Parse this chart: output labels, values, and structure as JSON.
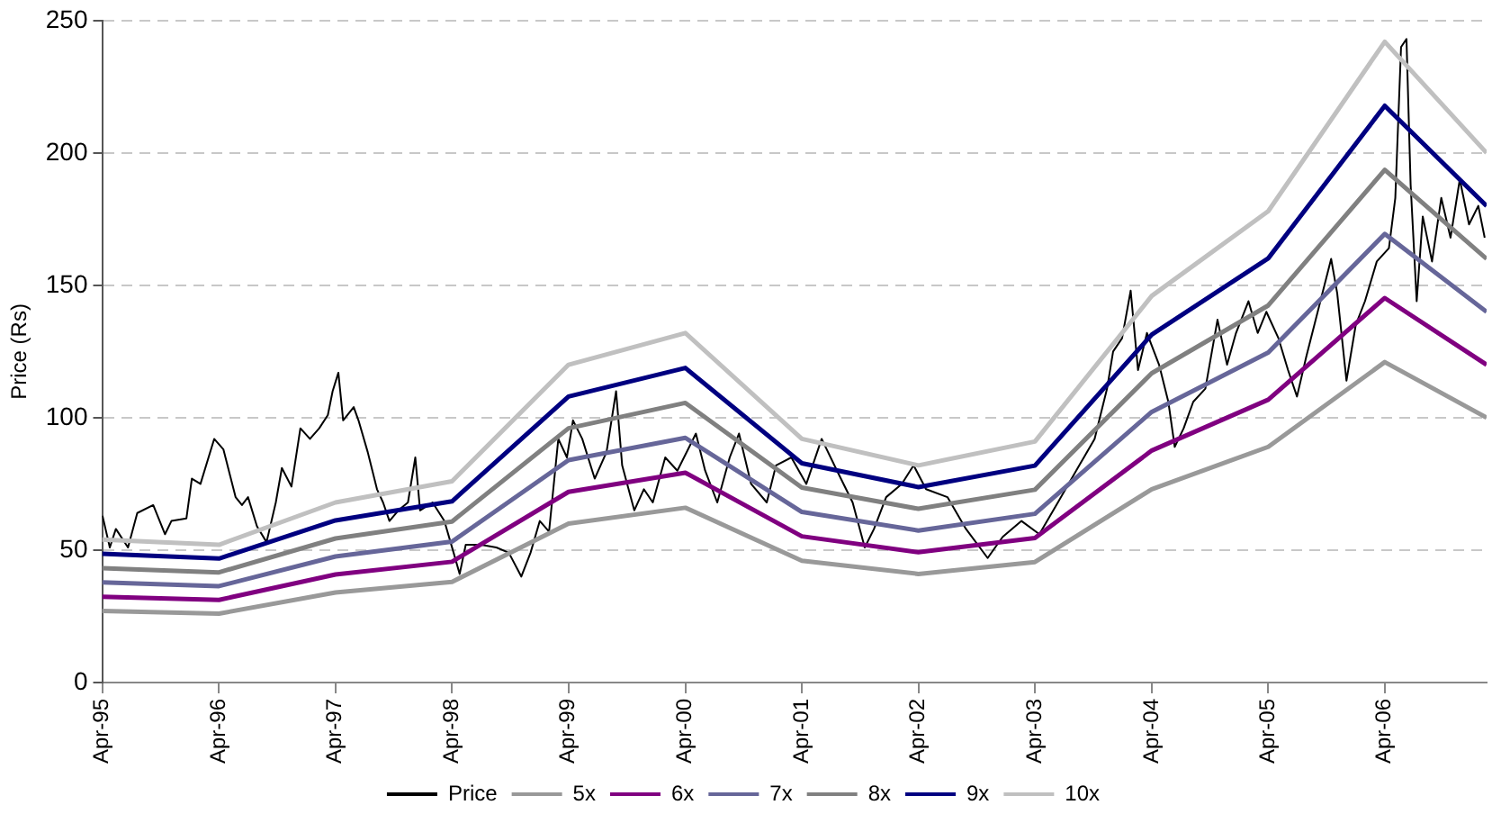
{
  "chart_data": {
    "type": "line",
    "ylabel": "Price (Rs)",
    "xlim": [
      "1995-04-01",
      "2007-02-14"
    ],
    "ylim": [
      0,
      250
    ],
    "yticks": [
      0,
      50,
      100,
      150,
      200,
      250
    ],
    "xticks": [
      {
        "value": "1995-04-01",
        "label": "Apr-95"
      },
      {
        "value": "1996-04-01",
        "label": "Apr-96"
      },
      {
        "value": "1997-04-01",
        "label": "Apr-97"
      },
      {
        "value": "1998-04-01",
        "label": "Apr-98"
      },
      {
        "value": "1999-04-01",
        "label": "Apr-99"
      },
      {
        "value": "2000-04-01",
        "label": "Apr-00"
      },
      {
        "value": "2001-04-01",
        "label": "Apr-01"
      },
      {
        "value": "2002-04-01",
        "label": "Apr-02"
      },
      {
        "value": "2003-04-01",
        "label": "Apr-03"
      },
      {
        "value": "2004-04-01",
        "label": "Apr-04"
      },
      {
        "value": "2005-04-01",
        "label": "Apr-05"
      },
      {
        "value": "2006-04-01",
        "label": "Apr-06"
      }
    ],
    "grid": "y",
    "legend": "bottom",
    "line_style": "solid",
    "series": [
      {
        "name": "Price",
        "color": "#000000",
        "x": [
          "1995-04-02",
          "1995-04-25",
          "1995-05-14",
          "1995-06-21",
          "1995-07-20",
          "1995-09-08",
          "1995-10-15",
          "1995-11-04",
          "1995-12-21",
          "1996-01-07",
          "1996-02-03",
          "1996-03-17",
          "1996-04-15",
          "1996-05-23",
          "1996-06-12",
          "1996-07-01",
          "1996-07-29",
          "1996-08-28",
          "1996-09-26",
          "1996-10-15",
          "1996-11-14",
          "1996-12-12",
          "1997-01-11",
          "1997-02-09",
          "1997-03-08",
          "1997-03-23",
          "1997-04-10",
          "1997-04-25",
          "1997-05-28",
          "1997-06-12",
          "1997-07-11",
          "1997-08-09",
          "1997-08-28",
          "1997-09-17",
          "1997-10-15",
          "1997-11-14",
          "1997-12-07",
          "1997-12-22",
          "1998-01-30",
          "1998-03-08",
          "1998-04-06",
          "1998-04-25",
          "1998-05-14",
          "1998-07-01",
          "1998-08-18",
          "1998-09-26",
          "1998-11-04",
          "1998-12-03",
          "1999-01-01",
          "1999-01-30",
          "1999-02-28",
          "1999-03-27",
          "1999-04-15",
          "1999-05-14",
          "1999-06-22",
          "1999-07-29",
          "1999-08-28",
          "1999-09-16",
          "1999-10-24",
          "1999-11-23",
          "1999-12-21",
          "2000-01-29",
          "2000-03-07",
          "2000-05-04",
          "2000-06-02",
          "2000-07-10",
          "2000-08-18",
          "2000-09-16",
          "2000-10-24",
          "2000-12-12",
          "2001-01-10",
          "2001-02-27",
          "2001-04-15",
          "2001-06-02",
          "2001-07-20",
          "2001-09-07",
          "2001-10-15",
          "2001-11-13",
          "2001-12-21",
          "2002-02-08",
          "2002-03-17",
          "2002-04-25",
          "2002-07-01",
          "2002-08-28",
          "2002-11-04",
          "2002-12-21",
          "2003-02-18",
          "2003-04-15",
          "2003-06-12",
          "2003-08-18",
          "2003-10-05",
          "2003-11-13",
          "2003-12-02",
          "2003-12-30",
          "2004-01-26",
          "2004-02-18",
          "2004-03-17",
          "2004-04-24",
          "2004-05-23",
          "2004-06-12",
          "2004-07-10",
          "2004-08-09",
          "2004-09-16",
          "2004-10-24",
          "2004-11-23",
          "2004-12-21",
          "2005-01-29",
          "2005-02-27",
          "2005-03-26",
          "2005-05-03",
          "2005-06-02",
          "2005-06-30",
          "2005-07-29",
          "2005-09-07",
          "2005-10-15",
          "2005-11-03",
          "2005-12-02",
          "2005-12-31",
          "2006-01-29",
          "2006-03-07",
          "2006-04-14",
          "2006-05-04",
          "2006-05-22",
          "2006-06-08",
          "2006-06-21",
          "2006-07-10",
          "2006-07-29",
          "2006-08-27",
          "2006-09-25",
          "2006-10-24",
          "2006-11-22",
          "2006-12-21",
          "2007-01-19",
          "2007-02-08"
        ],
        "values": [
          63,
          51,
          58,
          51,
          64,
          67,
          56,
          61,
          62,
          77,
          75,
          92,
          88,
          70,
          67,
          70,
          59,
          53,
          68,
          81,
          74,
          96,
          92,
          96,
          101,
          110,
          117,
          99,
          104,
          99,
          87,
          73,
          68,
          61,
          65,
          68,
          85,
          65,
          68,
          61,
          49,
          41,
          52,
          52,
          51,
          49,
          40,
          49,
          61,
          57,
          92,
          85,
          99,
          92,
          77,
          87,
          110,
          82,
          65,
          73,
          68,
          85,
          80,
          94,
          80,
          68,
          85,
          94,
          75,
          68,
          82,
          85,
          75,
          92,
          80,
          68,
          51,
          58,
          70,
          75,
          82,
          73,
          70,
          58,
          47,
          55,
          61,
          56,
          68,
          82,
          92,
          111,
          125,
          130,
          148,
          118,
          132,
          120,
          106,
          89,
          96,
          106,
          111,
          137,
          120,
          132,
          144,
          132,
          140,
          130,
          118,
          108,
          123,
          142,
          160,
          147,
          114,
          135,
          144,
          159,
          164,
          183,
          240,
          243,
          188,
          144,
          176,
          159,
          183,
          168,
          190,
          173,
          180,
          168
        ]
      },
      {
        "name": "5x",
        "color": "#999999",
        "x": [
          "1995-04-01",
          "1996-04-01",
          "1997-04-01",
          "1998-04-01",
          "1999-04-01",
          "2000-04-01",
          "2001-04-01",
          "2002-04-01",
          "2003-04-01",
          "2004-04-01",
          "2005-04-01",
          "2006-04-01",
          "2007-02-14"
        ],
        "values": [
          27,
          26,
          34,
          38,
          60,
          66,
          46,
          41,
          45.5,
          73,
          89,
          121,
          100
        ]
      },
      {
        "name": "6x",
        "color": "#800080",
        "x": [
          "1995-04-01",
          "1996-04-01",
          "1997-04-01",
          "1998-04-01",
          "1999-04-01",
          "2000-04-01",
          "2001-04-01",
          "2002-04-01",
          "2003-04-01",
          "2004-04-01",
          "2005-04-01",
          "2006-04-01",
          "2007-02-14"
        ],
        "values": [
          32.4,
          31.2,
          40.8,
          45.6,
          72,
          79.2,
          55.2,
          49.2,
          54.6,
          87.6,
          106.8,
          145.2,
          120
        ]
      },
      {
        "name": "7x",
        "color": "#666699",
        "x": [
          "1995-04-01",
          "1996-04-01",
          "1997-04-01",
          "1998-04-01",
          "1999-04-01",
          "2000-04-01",
          "2001-04-01",
          "2002-04-01",
          "2003-04-01",
          "2004-04-01",
          "2005-04-01",
          "2006-04-01",
          "2007-02-14"
        ],
        "values": [
          37.8,
          36.4,
          47.6,
          53.2,
          84,
          92.4,
          64.4,
          57.4,
          63.7,
          102.2,
          124.6,
          169.4,
          140
        ]
      },
      {
        "name": "8x",
        "color": "#808080",
        "x": [
          "1995-04-01",
          "1996-04-01",
          "1997-04-01",
          "1998-04-01",
          "1999-04-01",
          "2000-04-01",
          "2001-04-01",
          "2002-04-01",
          "2003-04-01",
          "2004-04-01",
          "2005-04-01",
          "2006-04-01",
          "2007-02-14"
        ],
        "values": [
          43.2,
          41.6,
          54.4,
          60.8,
          96,
          105.6,
          73.6,
          65.6,
          72.8,
          116.8,
          142.4,
          193.6,
          160
        ]
      },
      {
        "name": "9x",
        "color": "#000080",
        "x": [
          "1995-04-01",
          "1996-04-01",
          "1997-04-01",
          "1998-04-01",
          "1999-04-01",
          "2000-04-01",
          "2001-04-01",
          "2002-04-01",
          "2003-04-01",
          "2004-04-01",
          "2005-04-01",
          "2006-04-01",
          "2007-02-14"
        ],
        "values": [
          48.6,
          46.8,
          61.2,
          68.4,
          108,
          118.8,
          82.8,
          73.8,
          81.9,
          131.4,
          160.2,
          217.8,
          180
        ]
      },
      {
        "name": "10x",
        "color": "#c0c0c0",
        "x": [
          "1995-04-01",
          "1996-04-01",
          "1997-04-01",
          "1998-04-01",
          "1999-04-01",
          "2000-04-01",
          "2001-04-01",
          "2002-04-01",
          "2003-04-01",
          "2004-04-01",
          "2005-04-01",
          "2006-04-01",
          "2007-02-14"
        ],
        "values": [
          54,
          52,
          68,
          76,
          120,
          132,
          92,
          82,
          91,
          146,
          178,
          242,
          200
        ]
      }
    ]
  }
}
